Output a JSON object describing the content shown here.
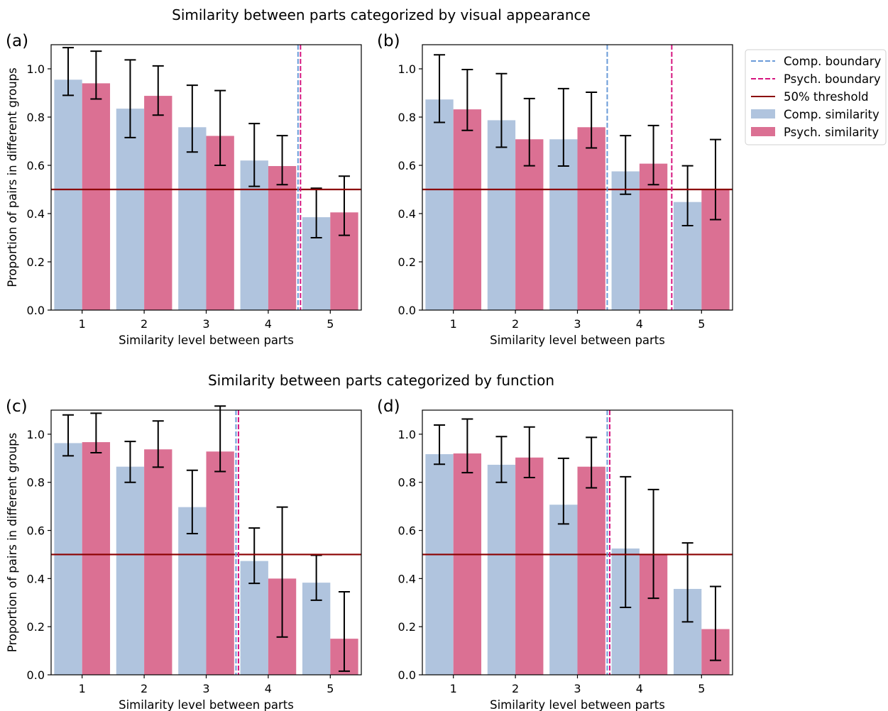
{
  "titles": {
    "top": "Similarity between parts categorized by visual appearance",
    "bottom": "Similarity between parts categorized by function"
  },
  "axis": {
    "xlabel": "Similarity level between parts",
    "ylabel": "Proportion of pairs in different groups",
    "xticks": [
      "1",
      "2",
      "3",
      "4",
      "5"
    ],
    "yticks": [
      "0.0",
      "0.2",
      "0.4",
      "0.6",
      "0.8",
      "1.0"
    ]
  },
  "legend": {
    "placement": "right of top-right panel",
    "entries": [
      {
        "label": "Comp. boundary",
        "kind": "dashed-line",
        "color": "#6a9bd8"
      },
      {
        "label": "Psych. boundary",
        "kind": "dashed-line",
        "color": "#d6157f"
      },
      {
        "label": "50% threshold",
        "kind": "line",
        "color": "#8b0000"
      },
      {
        "label": "Comp. similarity",
        "kind": "patch",
        "color": "#b0c4de"
      },
      {
        "label": "Psych. similarity",
        "kind": "patch",
        "color": "#db7093"
      }
    ]
  },
  "colors": {
    "comp": "#b0c4de",
    "psych": "#db7093",
    "comp_boundary": "#6a9bd8",
    "psych_boundary": "#d6157f",
    "threshold": "#8b0000",
    "errorbar": "#000000"
  },
  "chart_data": [
    {
      "type": "bar",
      "panel": "(a)",
      "categories": [
        1,
        2,
        3,
        4,
        5
      ],
      "series": [
        {
          "name": "Comp. similarity",
          "values": [
            0.955,
            0.835,
            0.758,
            0.62,
            0.385
          ],
          "err_low": [
            0.89,
            0.715,
            0.655,
            0.513,
            0.3
          ],
          "err_high": [
            1.088,
            1.037,
            0.932,
            0.773,
            0.505
          ]
        },
        {
          "name": "Psych. similarity",
          "values": [
            0.94,
            0.888,
            0.722,
            0.597,
            0.405
          ],
          "err_low": [
            0.875,
            0.808,
            0.6,
            0.52,
            0.31
          ],
          "err_high": [
            1.073,
            1.012,
            0.91,
            0.723,
            0.555
          ]
        }
      ],
      "comp_boundary": 4.48,
      "psych_boundary": 4.52,
      "threshold": 0.5,
      "ylim": [
        0,
        1.1
      ],
      "grid": false
    },
    {
      "type": "bar",
      "panel": "(b)",
      "categories": [
        1,
        2,
        3,
        4,
        5
      ],
      "series": [
        {
          "name": "Comp. similarity",
          "values": [
            0.873,
            0.787,
            0.708,
            0.575,
            0.448
          ],
          "err_low": [
            0.778,
            0.675,
            0.597,
            0.48,
            0.35
          ],
          "err_high": [
            1.058,
            0.98,
            0.918,
            0.723,
            0.598
          ]
        },
        {
          "name": "Psych. similarity",
          "values": [
            0.832,
            0.708,
            0.758,
            0.607,
            0.5
          ],
          "err_low": [
            0.745,
            0.598,
            0.672,
            0.52,
            0.375
          ],
          "err_high": [
            0.997,
            0.877,
            0.903,
            0.765,
            0.707
          ]
        }
      ],
      "comp_boundary": 3.48,
      "psych_boundary": 4.52,
      "threshold": 0.5,
      "ylim": [
        0,
        1.1
      ],
      "grid": false
    },
    {
      "type": "bar",
      "panel": "(c)",
      "categories": [
        1,
        2,
        3,
        4,
        5
      ],
      "series": [
        {
          "name": "Comp. similarity",
          "values": [
            0.963,
            0.865,
            0.697,
            0.473,
            0.383
          ],
          "err_low": [
            0.91,
            0.8,
            0.587,
            0.38,
            0.31
          ],
          "err_high": [
            1.08,
            0.97,
            0.85,
            0.61,
            0.497
          ]
        },
        {
          "name": "Psych. similarity",
          "values": [
            0.967,
            0.937,
            0.928,
            0.4,
            0.15
          ],
          "err_low": [
            0.923,
            0.863,
            0.845,
            0.157,
            0.015
          ],
          "err_high": [
            1.087,
            1.055,
            1.117,
            0.697,
            0.345
          ]
        }
      ],
      "comp_boundary": 3.48,
      "psych_boundary": 3.52,
      "threshold": 0.5,
      "ylim": [
        0,
        1.1
      ],
      "grid": false
    },
    {
      "type": "bar",
      "panel": "(d)",
      "categories": [
        1,
        2,
        3,
        4,
        5
      ],
      "series": [
        {
          "name": "Comp. similarity",
          "values": [
            0.917,
            0.873,
            0.707,
            0.525,
            0.357
          ],
          "err_low": [
            0.875,
            0.8,
            0.627,
            0.28,
            0.22
          ],
          "err_high": [
            1.038,
            0.99,
            0.9,
            0.823,
            0.548
          ]
        },
        {
          "name": "Psych. similarity",
          "values": [
            0.92,
            0.903,
            0.865,
            0.5,
            0.19
          ],
          "err_low": [
            0.84,
            0.82,
            0.777,
            0.318,
            0.06
          ],
          "err_high": [
            1.063,
            1.03,
            0.987,
            0.77,
            0.367
          ]
        }
      ],
      "comp_boundary": 3.48,
      "psych_boundary": 3.52,
      "threshold": 0.5,
      "ylim": [
        0,
        1.1
      ],
      "grid": false
    }
  ]
}
